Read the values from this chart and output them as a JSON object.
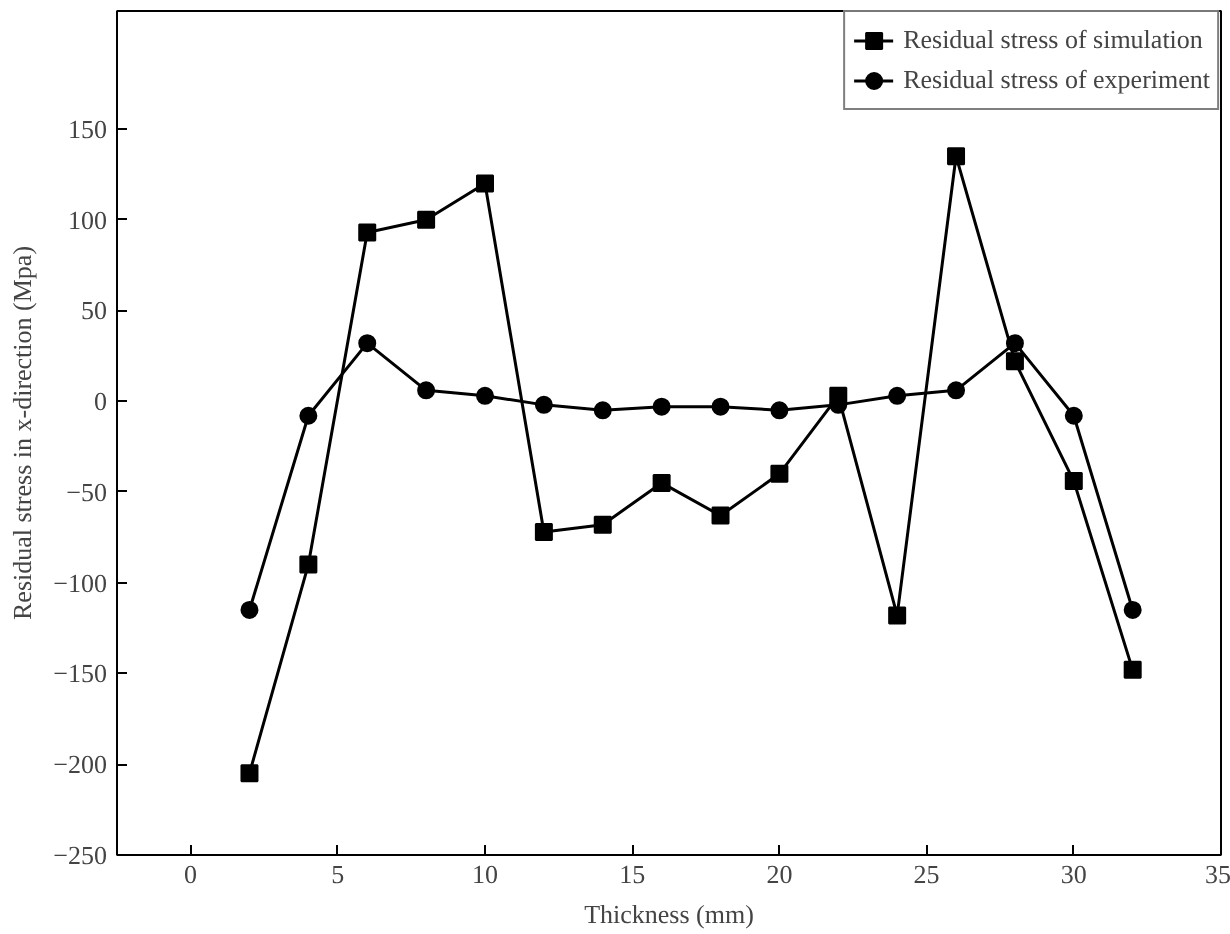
{
  "chart_data": {
    "type": "line",
    "xlabel": "Thickness (mm)",
    "ylabel": "Residual stress in x-direction (Mpa)",
    "x": [
      2,
      4,
      6,
      8,
      10,
      12,
      14,
      16,
      18,
      20,
      22,
      24,
      26,
      28,
      30,
      32
    ],
    "series": [
      {
        "name": "Residual stress of simulation",
        "color": "#000000",
        "marker": "square",
        "values": [
          -205,
          -90,
          93,
          100,
          120,
          -72,
          -68,
          -45,
          -63,
          -40,
          3,
          -118,
          135,
          22,
          -44,
          -148
        ]
      },
      {
        "name": "Residual stress of experiment",
        "color": "#000000",
        "marker": "circle",
        "values": [
          -115,
          -8,
          32,
          6,
          3,
          -2,
          -5,
          -3,
          -3,
          -5,
          -2,
          3,
          6,
          32,
          -8,
          -115
        ]
      }
    ],
    "xlim": [
      -2.5,
      35
    ],
    "xticks": [
      0,
      5,
      10,
      15,
      20,
      25,
      30,
      35
    ],
    "ylim": [
      -250,
      215
    ],
    "yticks": [
      -250,
      -200,
      -150,
      -100,
      -50,
      0,
      50,
      100,
      150
    ],
    "grid": false,
    "legend": "top right",
    "line_style": "solid"
  }
}
